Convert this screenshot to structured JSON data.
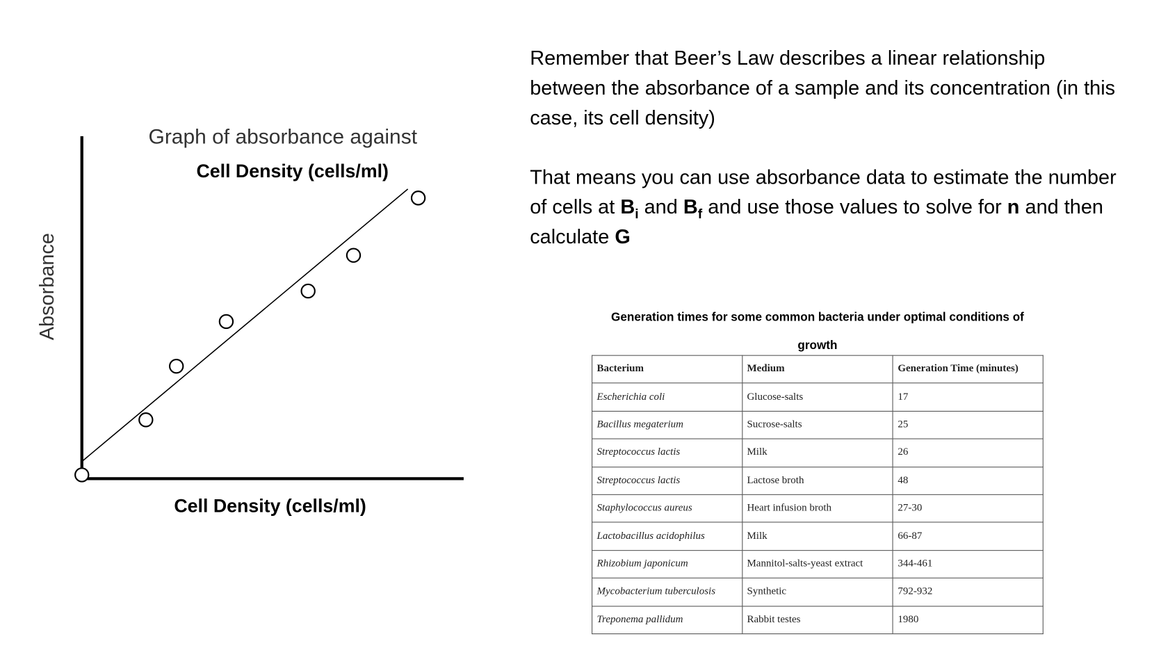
{
  "graph": {
    "title": "Graph of absorbance against",
    "subtitle": "Cell Density (cells/ml)",
    "y_label": "Absorbance",
    "x_label": "Cell Density (cells/ml)"
  },
  "paragraphs": [
    [
      "Remember that Beer’s Law describes a linear relationship between the absorbance of a sample and its concentration (in this case, its cell density)"
    ],
    [
      "That means you can use absorbance data to estimate the number of cells at ",
      "B",
      "i",
      " and ",
      "B",
      "f",
      " and use those values to solve for ",
      "n",
      " and then calculate ",
      "G"
    ]
  ],
  "table": {
    "title": "Generation times for some common bacteria under optimal conditions of growth",
    "header": [
      "Bacterium",
      "Medium",
      "Generation Time (minutes)"
    ],
    "rows": [
      [
        "Escherichia coli",
        "Glucose-salts",
        17
      ],
      [
        "Bacillus  megaterium",
        "Sucrose-salts",
        25
      ],
      [
        "Streptococcus lactis",
        "Milk",
        26
      ],
      [
        "Streptococcus lactis",
        "Lactose broth",
        48
      ],
      [
        "Staphylococcus aureus",
        "Heart infusion broth",
        "27-30"
      ],
      [
        "Lactobacillus acidophilus",
        "Milk",
        "66-87"
      ],
      [
        "Rhizobium japonicum",
        "Mannitol-salts-yeast extract",
        "344-461"
      ],
      [
        "Mycobacterium tuberculosis",
        "Synthetic",
        "792-932"
      ],
      [
        "Treponema pallidum",
        "Rabbit testes",
        1980
      ]
    ]
  }
}
